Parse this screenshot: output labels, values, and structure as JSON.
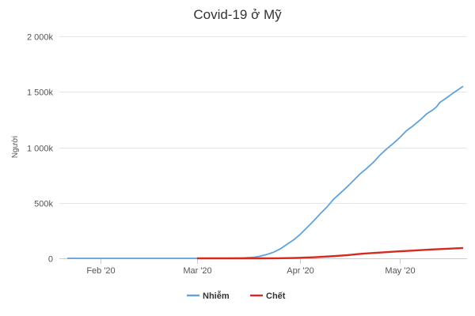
{
  "chart_data": {
    "type": "line",
    "title": "Covid-19 ở Mỹ",
    "xlabel": "",
    "ylabel": "Người",
    "xlim": [
      "2020-01-22",
      "2020-05-20"
    ],
    "ylim": [
      0,
      2000000
    ],
    "grid": true,
    "legend": "bottom-center",
    "x_ticks": [
      {
        "date": "2020-02-01",
        "label": "Feb '20"
      },
      {
        "date": "2020-03-01",
        "label": "Mar '20"
      },
      {
        "date": "2020-04-01",
        "label": "Apr '20"
      },
      {
        "date": "2020-05-01",
        "label": "May '20"
      }
    ],
    "y_ticks": [
      {
        "value": 0,
        "label": "0"
      },
      {
        "value": 500000,
        "label": "500k"
      },
      {
        "value": 1000000,
        "label": "1 000k"
      },
      {
        "value": 1500000,
        "label": "1 500k"
      },
      {
        "value": 2000000,
        "label": "2 000k"
      }
    ],
    "series": [
      {
        "name": "Nhiễm",
        "color": "#5fa2dd",
        "points": [
          [
            "2020-01-22",
            1
          ],
          [
            "2020-02-15",
            15
          ],
          [
            "2020-03-01",
            75
          ],
          [
            "2020-03-10",
            1000
          ],
          [
            "2020-03-15",
            3500
          ],
          [
            "2020-03-18",
            9000
          ],
          [
            "2020-03-20",
            20000
          ],
          [
            "2020-03-22",
            35000
          ],
          [
            "2020-03-24",
            55000
          ],
          [
            "2020-03-26",
            85000
          ],
          [
            "2020-03-28",
            125000
          ],
          [
            "2020-03-30",
            165000
          ],
          [
            "2020-04-01",
            215000
          ],
          [
            "2020-04-03",
            275000
          ],
          [
            "2020-04-05",
            335000
          ],
          [
            "2020-04-07",
            400000
          ],
          [
            "2020-04-09",
            460000
          ],
          [
            "2020-04-11",
            530000
          ],
          [
            "2020-04-13",
            585000
          ],
          [
            "2020-04-15",
            640000
          ],
          [
            "2020-04-17",
            700000
          ],
          [
            "2020-04-19",
            760000
          ],
          [
            "2020-04-21",
            810000
          ],
          [
            "2020-04-23",
            865000
          ],
          [
            "2020-04-25",
            930000
          ],
          [
            "2020-04-27",
            985000
          ],
          [
            "2020-04-29",
            1035000
          ],
          [
            "2020-05-01",
            1090000
          ],
          [
            "2020-05-03",
            1150000
          ],
          [
            "2020-05-05",
            1195000
          ],
          [
            "2020-05-07",
            1245000
          ],
          [
            "2020-05-09",
            1300000
          ],
          [
            "2020-05-11",
            1340000
          ],
          [
            "2020-05-12",
            1365000
          ],
          [
            "2020-05-13",
            1405000
          ],
          [
            "2020-05-15",
            1445000
          ],
          [
            "2020-05-17",
            1490000
          ],
          [
            "2020-05-20",
            1550000
          ]
        ]
      },
      {
        "name": "Chết",
        "color": "#d42a20",
        "points": [
          [
            "2020-03-01",
            1
          ],
          [
            "2020-03-10",
            30
          ],
          [
            "2020-03-20",
            250
          ],
          [
            "2020-03-25",
            1000
          ],
          [
            "2020-03-30",
            3000
          ],
          [
            "2020-04-01",
            5000
          ],
          [
            "2020-04-05",
            9500
          ],
          [
            "2020-04-10",
            18000
          ],
          [
            "2020-04-15",
            28000
          ],
          [
            "2020-04-18",
            37000
          ],
          [
            "2020-04-20",
            42000
          ],
          [
            "2020-04-25",
            52000
          ],
          [
            "2020-04-30",
            62000
          ],
          [
            "2020-05-05",
            70000
          ],
          [
            "2020-05-10",
            79000
          ],
          [
            "2020-05-15",
            86000
          ],
          [
            "2020-05-20",
            93000
          ]
        ]
      }
    ]
  }
}
